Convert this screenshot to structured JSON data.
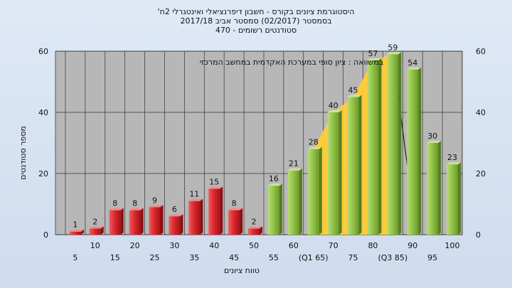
{
  "chart_data": {
    "type": "bar",
    "title_lines": [
      "'היסטוגרמת ציונים בקורס - חשבון דיפרנציאלי ואינטגרלי 2ח",
      "בסמסטר  (02/2017)  סמסטר אביב 2017/18",
      "סטודנטים רשומים - 470"
    ],
    "annotation": "במשוואה : ציון סופי במערכת האקדמית במחשב המרכזי",
    "xlabel": "טווח ציונים",
    "ylabel": "מספר סטודנטים",
    "ylim": [
      0,
      60
    ],
    "yticks": [
      0,
      20,
      40,
      60
    ],
    "categories": [
      "5",
      "10",
      "15",
      "20",
      "25",
      "30",
      "35",
      "40",
      "45",
      "50",
      "55",
      "60",
      "(Q1 65)",
      "70",
      "75",
      "80",
      "(Q3 85)",
      "90",
      "95",
      "100"
    ],
    "values": [
      1,
      2,
      8,
      8,
      9,
      6,
      11,
      15,
      8,
      2,
      16,
      21,
      28,
      40,
      45,
      57,
      59,
      54,
      30,
      23
    ],
    "data_labels": [
      "1",
      "2",
      "8",
      "8",
      "9",
      "6",
      "11",
      "15",
      "8",
      "2",
      "16",
      "21",
      "28",
      "40",
      "45",
      "57",
      "59",
      "54",
      "30",
      "23"
    ],
    "fail_color": "#e0242b",
    "pass_color": "#8fc146",
    "quartile_band_color": "#ffcc33",
    "grid": true
  }
}
